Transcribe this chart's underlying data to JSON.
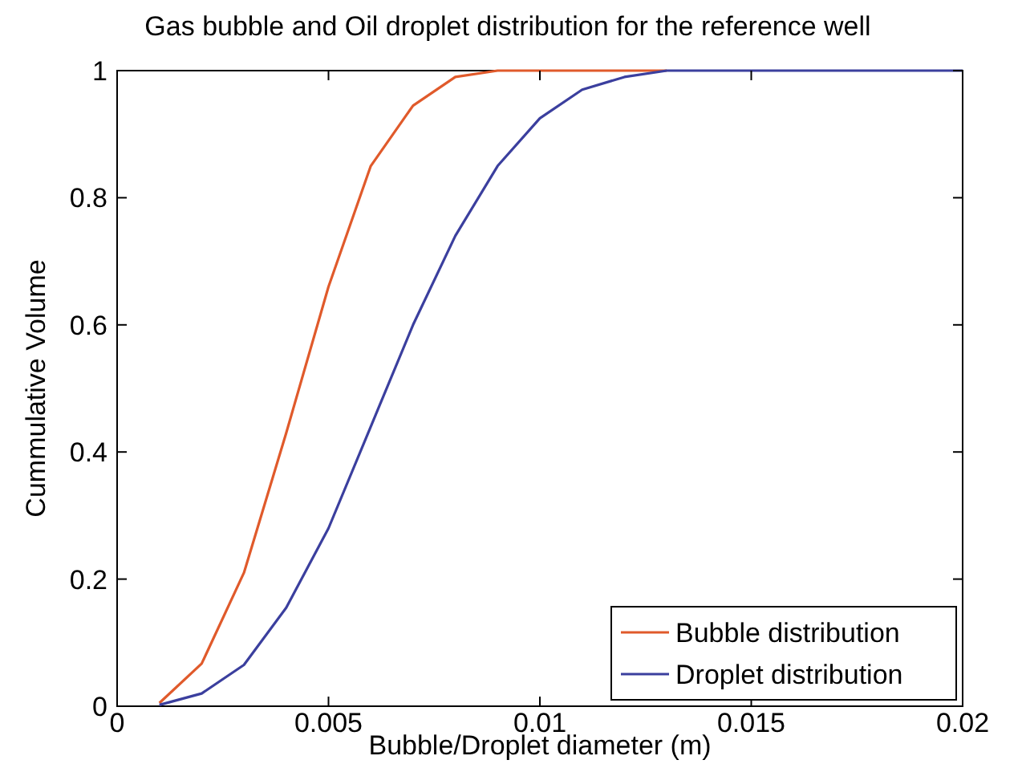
{
  "chart_data": {
    "type": "line",
    "title": "Gas bubble and Oil droplet distribution for the reference well",
    "xlabel": "Bubble/Droplet diameter (m)",
    "ylabel": "Cummulative Volume",
    "x": [
      0.001,
      0.002,
      0.003,
      0.004,
      0.005,
      0.006,
      0.007,
      0.008,
      0.009,
      0.01,
      0.011,
      0.012,
      0.013,
      0.014,
      0.015,
      0.016,
      0.017,
      0.018,
      0.019,
      0.02
    ],
    "series": [
      {
        "name": "Bubble distribution",
        "color": "#e05a2b",
        "values": [
          0.005,
          0.067,
          0.21,
          0.43,
          0.66,
          0.85,
          0.945,
          0.99,
          1,
          1,
          1,
          1,
          1,
          null,
          null,
          null,
          null,
          null,
          null,
          null
        ]
      },
      {
        "name": "Droplet distribution",
        "color": "#3b3f9e",
        "values": [
          0.002,
          0.02,
          0.065,
          0.155,
          0.28,
          0.44,
          0.6,
          0.74,
          0.85,
          0.925,
          0.97,
          0.99,
          1,
          1,
          1,
          1,
          1,
          1,
          1,
          1
        ]
      }
    ],
    "xlim": [
      0,
      0.02
    ],
    "ylim": [
      0,
      1
    ],
    "xticks": [
      0,
      0.005,
      0.01,
      0.015,
      0.02
    ],
    "yticks": [
      0,
      0.2,
      0.4,
      0.6,
      0.8,
      1
    ],
    "legend": "bottom right",
    "grid": false,
    "marker": "none",
    "line_style": "solid"
  }
}
